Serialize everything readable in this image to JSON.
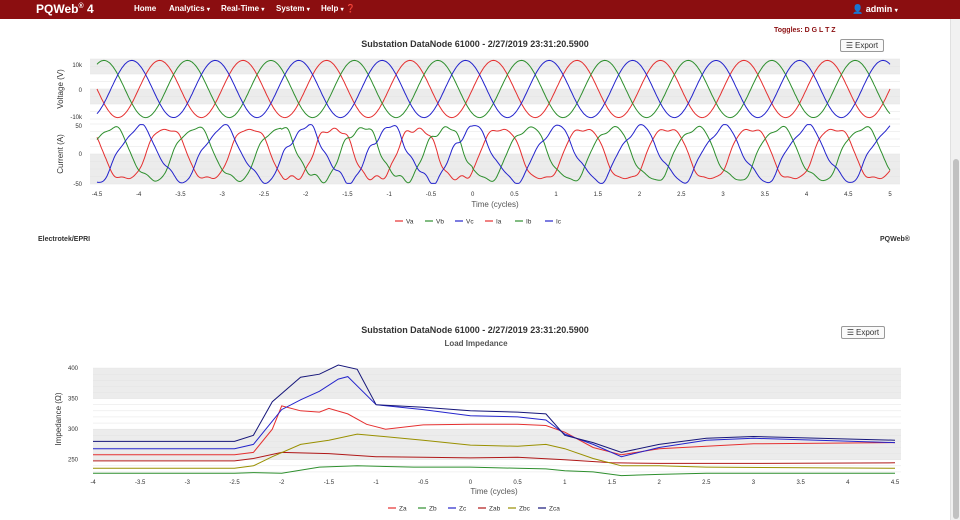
{
  "nav": {
    "brand": "PQWeb",
    "brand_sup": "®",
    "brand_version": " 4",
    "items": [
      "Home",
      "Analytics",
      "Real-Time",
      "System",
      "Help"
    ],
    "user": "admin"
  },
  "toggles_label": "Toggles: D G L T Z",
  "export_label": "Export",
  "footer": {
    "left": "Electrotek/EPRI",
    "right": "PQWeb®"
  },
  "colors": {
    "a": "#e53030",
    "b": "#2e8f2e",
    "c": "#2424cc",
    "ab": "#b01818",
    "bc": "#999000",
    "ca": "#16167a"
  },
  "chart_data": [
    {
      "type": "line",
      "title": "Substation DataNode 61000 - 2/27/2019 23:31:20.5900",
      "xlabel": "Time (cycles)",
      "x_ticks": [
        "-4.5",
        "-4",
        "-3.5",
        "-3",
        "-2.5",
        "-2",
        "-1.5",
        "-1",
        "-0.5",
        "0",
        "0.5",
        "1",
        "1.5",
        "2",
        "2.5",
        "3",
        "3.5",
        "4",
        "4.5",
        "5"
      ],
      "xlim": [
        -4.5,
        5
      ],
      "panels": [
        {
          "ylabel": "Voltage (V)",
          "ylim": [
            -10500,
            10500
          ],
          "y_ticks": [
            "10k",
            "0",
            "-10k"
          ],
          "series": [
            {
              "name": "Va",
              "amplitude": 10000,
              "phase_deg": 0
            },
            {
              "name": "Vb",
              "amplitude": 10000,
              "phase_deg": -120
            },
            {
              "name": "Vc",
              "amplitude": 10000,
              "phase_deg": 120
            }
          ]
        },
        {
          "ylabel": "Current (A)",
          "ylim": [
            -50,
            50
          ],
          "y_ticks": [
            "50",
            "0",
            "-50"
          ],
          "series": [
            {
              "name": "Ia",
              "amplitude": 45,
              "phase_deg": -30
            },
            {
              "name": "Ib",
              "amplitude": 45,
              "phase_deg": -150
            },
            {
              "name": "Ic",
              "amplitude": 45,
              "phase_deg": 90
            }
          ]
        }
      ],
      "legend": [
        "Va",
        "Vb",
        "Vc",
        "Ia",
        "Ib",
        "Ic"
      ],
      "legend_position": "bottom-center",
      "grid": true
    },
    {
      "type": "line",
      "title": "Substation DataNode 61000 - 2/27/2019 23:31:20.5900",
      "subtitle": "Load Impedance",
      "xlabel": "Time (cycles)",
      "ylabel": "Impedance (Ω)",
      "x_ticks": [
        "-4",
        "-3.5",
        "-3",
        "-2.5",
        "-2",
        "-1.5",
        "-1",
        "-0.5",
        "0",
        "0.5",
        "1",
        "1.5",
        "2",
        "2.5",
        "3",
        "3.5",
        "4",
        "4.5"
      ],
      "y_ticks": [
        "400",
        "350",
        "300",
        "250"
      ],
      "xlim": [
        -4,
        4.5
      ],
      "ylim": [
        225,
        405
      ],
      "grid": true,
      "legend_position": "bottom-center",
      "series": [
        {
          "name": "Za",
          "x": [
            -4,
            -2.5,
            -2.3,
            -2.1,
            -2.0,
            -1.8,
            -1.6,
            -1.5,
            -1.3,
            -1.1,
            -0.9,
            -0.5,
            0,
            0.5,
            0.8,
            1.0,
            1.3,
            1.6,
            2.0,
            2.5,
            3.0,
            4.5
          ],
          "y": [
            258,
            258,
            262,
            300,
            338,
            330,
            328,
            334,
            325,
            308,
            300,
            307,
            308,
            308,
            306,
            295,
            270,
            258,
            268,
            272,
            276,
            278
          ]
        },
        {
          "name": "Zb",
          "x": [
            -4,
            -2.5,
            -2.3,
            -2.0,
            -1.6,
            -1.2,
            -0.6,
            0,
            0.5,
            0.8,
            1.0,
            1.3,
            1.6,
            2.0,
            2.5,
            4.5
          ],
          "y": [
            228,
            228,
            229,
            228,
            238,
            240,
            238,
            238,
            236,
            235,
            232,
            230,
            224,
            226,
            228,
            228
          ]
        },
        {
          "name": "Zc",
          "x": [
            -4,
            -2.5,
            -2.3,
            -2.0,
            -1.8,
            -1.6,
            -1.4,
            -1.3,
            -1.0,
            -0.5,
            0,
            0.5,
            0.8,
            1.0,
            1.3,
            1.6,
            2.0,
            2.5,
            3.0,
            4.5
          ],
          "y": [
            268,
            268,
            275,
            332,
            348,
            362,
            382,
            386,
            340,
            332,
            322,
            320,
            315,
            292,
            275,
            255,
            270,
            282,
            285,
            278
          ]
        },
        {
          "name": "Zab",
          "x": [
            -4,
            -2.5,
            -2.3,
            -2.0,
            -1.5,
            -1.0,
            -0.5,
            0,
            0.5,
            1.0,
            1.5,
            2.0,
            3.0,
            4.5
          ],
          "y": [
            248,
            248,
            252,
            262,
            260,
            255,
            254,
            253,
            254,
            250,
            245,
            244,
            244,
            245
          ]
        },
        {
          "name": "Zbc",
          "x": [
            -4,
            -2.5,
            -2.3,
            -2.1,
            -1.8,
            -1.5,
            -1.2,
            -0.5,
            0,
            0.5,
            0.8,
            1.0,
            1.3,
            1.6,
            2.0,
            2.5,
            4.5
          ],
          "y": [
            236,
            236,
            240,
            255,
            275,
            282,
            292,
            282,
            274,
            272,
            275,
            268,
            252,
            240,
            240,
            238,
            236
          ]
        },
        {
          "name": "Zca",
          "x": [
            -4,
            -2.5,
            -2.3,
            -2.1,
            -1.8,
            -1.6,
            -1.4,
            -1.2,
            -1.0,
            -0.5,
            0,
            0.5,
            0.8,
            1.0,
            1.3,
            1.6,
            2.0,
            2.5,
            3.0,
            4.5
          ],
          "y": [
            280,
            280,
            290,
            345,
            385,
            390,
            405,
            398,
            340,
            336,
            330,
            328,
            325,
            290,
            278,
            262,
            275,
            285,
            288,
            282
          ]
        }
      ]
    }
  ]
}
